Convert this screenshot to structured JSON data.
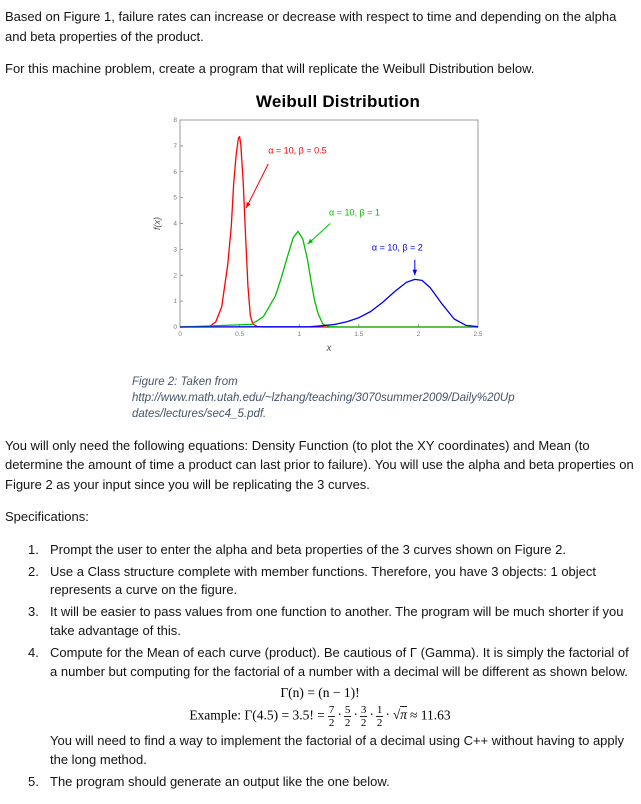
{
  "doc": {
    "intro_1": "Based on Figure 1, failure rates can increase or decrease with respect to time and depending on the alpha and beta properties of the product.",
    "intro_2": "For this machine problem, create a program that will replicate the Weibull Distribution below.",
    "figure_caption": {
      "line1": "Figure 2: Taken from",
      "line2": "http://www.math.utah.edu/~lzhang/teaching/3070summer2009/Daily%20Up",
      "line3": "dates/lectures/sec4_5.pdf."
    },
    "para_equations": "You will only need the following equations: Density Function (to plot the XY coordinates) and Mean (to determine the amount of time a product can last prior to failure). You will use the alpha and beta properties on Figure 2 as your input since you will be replicating the 3 curves.",
    "spec_heading": "Specifications:",
    "spec_items": [
      {
        "num": "1.",
        "text": "Prompt the user to enter the alpha and beta properties of the 3 curves shown on Figure 2."
      },
      {
        "num": "2.",
        "text": "Use a Class structure complete with member functions. Therefore, you have 3 objects: 1 object represents a curve on the figure."
      },
      {
        "num": "3.",
        "text": "It will be easier to pass values from one function to another. The program will be much shorter if you take advantage of this."
      },
      {
        "num": "4.",
        "text": "Compute for the Mean of each curve (product). Be cautious of Γ (Gamma). It is simply the factorial of a number but computing for the factorial of a number with a decimal will be different as shown below."
      },
      {
        "num": "5.",
        "text": "The program should generate an output like the one below."
      }
    ],
    "formula": {
      "gamma_definition": "Γ(n) = (n − 1)!",
      "example_prefix": "Example: Γ(4.5) = 3.5! =",
      "fractions": [
        {
          "num": "7",
          "den": "2"
        },
        {
          "num": "5",
          "den": "2"
        },
        {
          "num": "3",
          "den": "2"
        },
        {
          "num": "1",
          "den": "2"
        }
      ],
      "multiply_dot": "·",
      "radical": "√",
      "radicand": "π",
      "approx_result": "≈ 11.63"
    },
    "note_after_formula": "You will need to find a way to implement the factorial of a decimal using C++ without having to apply the long method."
  },
  "chart_data": {
    "type": "line",
    "title": "Weibull Distribution",
    "xlabel": "x",
    "ylabel": "f(x)",
    "xlim": [
      0,
      2.5
    ],
    "ylim": [
      0,
      8
    ],
    "xticks": [
      0,
      0.5,
      1,
      1.5,
      2,
      2.5
    ],
    "yticks": [
      0,
      1,
      2,
      3,
      4,
      5,
      6,
      7,
      8
    ],
    "grid": false,
    "legend": "none",
    "axis_color": "#9a9a9a",
    "tick_color": "#777777",
    "series": [
      {
        "name": "α = 10, β = 0.5",
        "color": "#ff0000",
        "points": [
          [
            0,
            0
          ],
          [
            0.25,
            0.02
          ],
          [
            0.3,
            0.2
          ],
          [
            0.35,
            0.78
          ],
          [
            0.4,
            2.4
          ],
          [
            0.43,
            3.9
          ],
          [
            0.45,
            5.5
          ],
          [
            0.47,
            6.6
          ],
          [
            0.49,
            7.3
          ],
          [
            0.5,
            7.36
          ],
          [
            0.51,
            7.05
          ],
          [
            0.53,
            5.6
          ],
          [
            0.55,
            3.5
          ],
          [
            0.57,
            1.6
          ],
          [
            0.59,
            0.45
          ],
          [
            0.61,
            0.12
          ],
          [
            0.65,
            0.01
          ],
          [
            0.7,
            0
          ],
          [
            2.5,
            0
          ]
        ]
      },
      {
        "name": "α = 10, β = 1",
        "color": "#00c000",
        "points": [
          [
            0,
            0
          ],
          [
            0.6,
            0.1
          ],
          [
            0.7,
            0.4
          ],
          [
            0.8,
            1.2
          ],
          [
            0.85,
            1.9
          ],
          [
            0.9,
            2.7
          ],
          [
            0.95,
            3.45
          ],
          [
            0.99,
            3.7
          ],
          [
            1.03,
            3.4
          ],
          [
            1.07,
            2.6
          ],
          [
            1.1,
            1.75
          ],
          [
            1.13,
            1.0
          ],
          [
            1.16,
            0.5
          ],
          [
            1.2,
            0.1
          ],
          [
            1.26,
            0.01
          ],
          [
            1.35,
            0
          ],
          [
            2.5,
            0
          ]
        ]
      },
      {
        "name": "α = 10, β = 2",
        "color": "#0000ee",
        "points": [
          [
            0,
            0
          ],
          [
            1.1,
            0.01
          ],
          [
            1.2,
            0.05
          ],
          [
            1.3,
            0.1
          ],
          [
            1.4,
            0.2
          ],
          [
            1.5,
            0.36
          ],
          [
            1.6,
            0.6
          ],
          [
            1.7,
            0.95
          ],
          [
            1.8,
            1.37
          ],
          [
            1.9,
            1.73
          ],
          [
            1.97,
            1.84
          ],
          [
            2.03,
            1.8
          ],
          [
            2.1,
            1.52
          ],
          [
            2.2,
            0.88
          ],
          [
            2.3,
            0.31
          ],
          [
            2.4,
            0.06
          ],
          [
            2.5,
            0.01
          ]
        ]
      }
    ],
    "annotations": [
      {
        "text": "α = 10, β = 0.5",
        "color": "#ff0000",
        "label_xy": [
          0.74,
          6.7
        ],
        "arrow_from": [
          0.74,
          6.3
        ],
        "arrow_to": [
          0.555,
          4.6
        ]
      },
      {
        "text": "α = 10, β = 1",
        "color": "#00c000",
        "label_xy": [
          1.25,
          4.3
        ],
        "arrow_from": [
          1.26,
          4.0
        ],
        "arrow_to": [
          1.07,
          3.2
        ]
      },
      {
        "text": "α = 10, β = 2",
        "color": "#0000ee",
        "label_xy": [
          1.61,
          2.95
        ],
        "arrow_from": [
          1.97,
          2.6
        ],
        "arrow_to": [
          1.97,
          2.0
        ]
      }
    ]
  }
}
